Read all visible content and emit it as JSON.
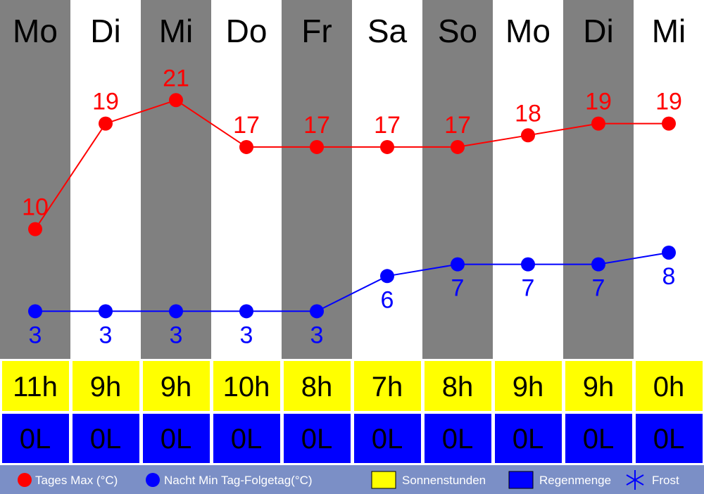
{
  "chart_data": {
    "type": "line",
    "categories": [
      "Mo",
      "Di",
      "Mi",
      "Do",
      "Fr",
      "Sa",
      "So",
      "Mo",
      "Di",
      "Mi"
    ],
    "series": [
      {
        "name": "Tages Max (°C)",
        "color": "#ff0000",
        "values": [
          10,
          19,
          21,
          17,
          17,
          17,
          17,
          18,
          19,
          19
        ],
        "label_position": "above"
      },
      {
        "name": "Nacht Min Tag-Folgetag(°C)",
        "color": "#0000ff",
        "values": [
          3,
          3,
          3,
          3,
          3,
          6,
          7,
          7,
          7,
          8
        ],
        "label_position": "below"
      }
    ],
    "sunshine_hours": [
      "11h",
      "9h",
      "9h",
      "10h",
      "8h",
      "7h",
      "8h",
      "9h",
      "9h",
      "0h"
    ],
    "rain": [
      "0L",
      "0L",
      "0L",
      "0L",
      "0L",
      "0L",
      "0L",
      "0L",
      "0L",
      "0L"
    ],
    "column_colors": {
      "shaded": "#808080",
      "plain": "#ffffff"
    },
    "sun_color": "#ffff00",
    "rain_color": "#0000ff",
    "legend": {
      "background": "#7b8fc6",
      "items": [
        {
          "label": "Tages Max (°C)",
          "marker": "red-dot",
          "color": "#ff0000"
        },
        {
          "label": "Nacht Min Tag-Folgetag(°C)",
          "marker": "blue-dot",
          "color": "#0000ff"
        },
        {
          "label": "Sonnenstunden",
          "marker": "yellow-square",
          "color": "#ffff00"
        },
        {
          "label": "Regenmenge",
          "marker": "blue-square",
          "color": "#0000ff"
        },
        {
          "label": "Frost",
          "marker": "snowflake-icon",
          "color": "#0000ff"
        }
      ]
    },
    "legend_placement": "bottom",
    "grid": false
  }
}
